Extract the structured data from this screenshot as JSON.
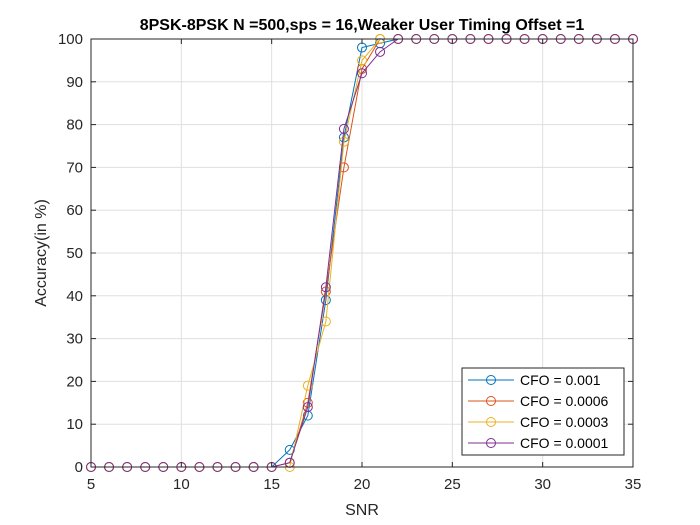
{
  "chart_data": {
    "type": "line",
    "title": "8PSK-8PSK N =500,sps = 16,Weaker User Timing Offset =1",
    "xlabel": "SNR",
    "ylabel": "Accuracy(in %)",
    "xlim": [
      5,
      35
    ],
    "ylim": [
      0,
      100
    ],
    "xticks": [
      5,
      10,
      15,
      20,
      25,
      30,
      35
    ],
    "yticks": [
      0,
      10,
      20,
      30,
      40,
      50,
      60,
      70,
      80,
      90,
      100
    ],
    "grid": true,
    "legend_position": "bottom-right",
    "marker": "circle",
    "x": [
      5,
      6,
      7,
      8,
      9,
      10,
      11,
      12,
      13,
      14,
      15,
      16,
      17,
      18,
      19,
      20,
      21,
      22,
      23,
      24,
      25,
      26,
      27,
      28,
      29,
      30,
      31,
      32,
      33,
      34,
      35
    ],
    "series": [
      {
        "name": "CFO = 0.001",
        "color": "#0072BD",
        "values": [
          0,
          0,
          0,
          0,
          0,
          0,
          0,
          0,
          0,
          0,
          0,
          4,
          12,
          39,
          77,
          98,
          99,
          100,
          100,
          100,
          100,
          100,
          100,
          100,
          100,
          100,
          100,
          100,
          100,
          100,
          100
        ]
      },
      {
        "name": "CFO = 0.0006",
        "color": "#D95319",
        "values": [
          0,
          0,
          0,
          0,
          0,
          0,
          0,
          0,
          0,
          0,
          0,
          1,
          15,
          41,
          70,
          93,
          100,
          100,
          100,
          100,
          100,
          100,
          100,
          100,
          100,
          100,
          100,
          100,
          100,
          100,
          100
        ]
      },
      {
        "name": "CFO = 0.0003",
        "color": "#EDB120",
        "values": [
          0,
          0,
          0,
          0,
          0,
          0,
          0,
          0,
          0,
          0,
          0,
          0,
          19,
          34,
          76,
          95,
          100,
          100,
          100,
          100,
          100,
          100,
          100,
          100,
          100,
          100,
          100,
          100,
          100,
          100,
          100
        ]
      },
      {
        "name": "CFO = 0.0001",
        "color": "#7E2F8E",
        "values": [
          0,
          0,
          0,
          0,
          0,
          0,
          0,
          0,
          0,
          0,
          0,
          1,
          14,
          42,
          79,
          92,
          97,
          100,
          100,
          100,
          100,
          100,
          100,
          100,
          100,
          100,
          100,
          100,
          100,
          100,
          100
        ]
      }
    ]
  }
}
